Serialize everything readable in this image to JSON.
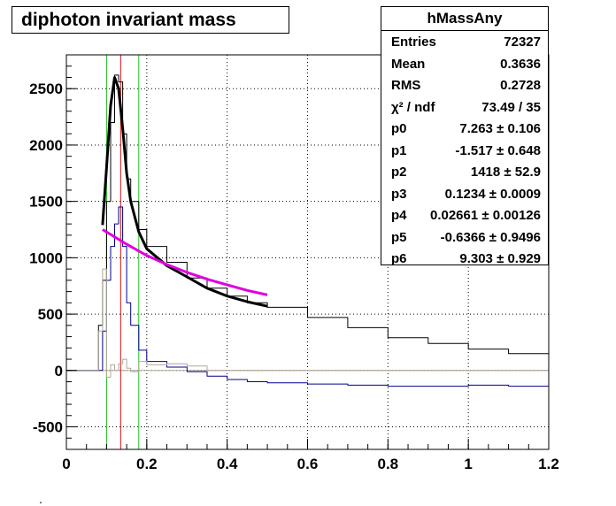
{
  "chart_data": {
    "type": "line",
    "title": "diphoton invariant mass",
    "xlim": [
      0,
      1.2
    ],
    "ylim": [
      -700,
      2800
    ],
    "x_ticks": [
      "0",
      "0.2",
      "0.4",
      "0.6",
      "0.8",
      "1",
      "1.2"
    ],
    "y_ticks": [
      "-500",
      "0",
      "500",
      "1000",
      "1500",
      "2000",
      "2500"
    ],
    "grid": true,
    "series": [
      {
        "role": "histogram-total",
        "color": "#000000",
        "x": [
          0.0,
          0.08,
          0.09,
          0.1,
          0.11,
          0.12,
          0.13,
          0.14,
          0.15,
          0.16,
          0.18,
          0.2,
          0.25,
          0.3,
          0.35,
          0.4,
          0.45,
          0.5,
          0.6,
          0.7,
          0.8,
          0.9,
          1.0,
          1.1,
          1.2
        ],
        "y": [
          0,
          400,
          800,
          1500,
          2200,
          2620,
          2560,
          2100,
          1700,
          1500,
          1250,
          1100,
          960,
          820,
          730,
          660,
          600,
          560,
          470,
          380,
          290,
          240,
          190,
          150,
          100
        ]
      },
      {
        "role": "histogram-background-subtracted",
        "color": "#00008b",
        "x": [
          0.0,
          0.08,
          0.09,
          0.1,
          0.11,
          0.12,
          0.13,
          0.14,
          0.15,
          0.16,
          0.18,
          0.2,
          0.25,
          0.3,
          0.35,
          0.4,
          0.45,
          0.5,
          0.6,
          0.7,
          0.8,
          0.9,
          1.0,
          1.1,
          1.2
        ],
        "y": [
          0,
          0,
          350,
          800,
          1100,
          1300,
          1450,
          1100,
          600,
          400,
          180,
          80,
          30,
          -10,
          -50,
          -80,
          -100,
          -110,
          -120,
          -130,
          -140,
          -140,
          -130,
          -140,
          -150
        ]
      },
      {
        "role": "histogram-sideband",
        "color": "#b0a89a",
        "x": [
          0.0,
          0.07,
          0.08,
          0.09,
          0.1,
          0.11,
          0.12,
          0.13,
          0.14,
          0.15,
          0.16,
          0.18,
          0.2,
          0.25,
          0.3,
          0.35,
          1.2
        ],
        "y": [
          0,
          0,
          350,
          900,
          -60,
          50,
          0,
          60,
          100,
          20,
          -10,
          80,
          50,
          60,
          40,
          0,
          0
        ]
      },
      {
        "role": "fit-total",
        "color": "#000000",
        "x": [
          0.09,
          0.1,
          0.11,
          0.12,
          0.13,
          0.14,
          0.15,
          0.16,
          0.18,
          0.2,
          0.25,
          0.3,
          0.35,
          0.4,
          0.45,
          0.5
        ],
        "y": [
          1290,
          1800,
          2350,
          2600,
          2500,
          2150,
          1750,
          1500,
          1230,
          1080,
          930,
          830,
          730,
          660,
          610,
          570
        ]
      },
      {
        "role": "fit-background",
        "color": "#e000e0",
        "x": [
          0.09,
          0.15,
          0.2,
          0.25,
          0.3,
          0.35,
          0.4,
          0.45,
          0.5
        ],
        "y": [
          1250,
          1120,
          1020,
          940,
          870,
          810,
          760,
          710,
          670
        ]
      }
    ],
    "vertical_lines": [
      {
        "x": 0.1,
        "color": "#22c022"
      },
      {
        "x": 0.135,
        "color": "#d01010"
      },
      {
        "x": 0.18,
        "color": "#22c022"
      }
    ],
    "stats_box": {
      "name": "hMassAny",
      "rows": [
        {
          "key": "Entries",
          "value": "72327"
        },
        {
          "key": "Mean",
          "value": "0.3636"
        },
        {
          "key": "RMS",
          "value": "0.2728"
        },
        {
          "key": "χ² / ndf",
          "value": "73.49 / 35"
        },
        {
          "key": "p0",
          "value": "7.263 ± 0.106"
        },
        {
          "key": "p1",
          "value": "-1.517 ± 0.648"
        },
        {
          "key": "p2",
          "value": "1418 ± 52.9"
        },
        {
          "key": "p3",
          "value": "0.1234 ± 0.0009"
        },
        {
          "key": "p4",
          "value": "0.02661 ± 0.00126"
        },
        {
          "key": "p5",
          "value": "-0.6366 ± 0.9496"
        },
        {
          "key": "p6",
          "value": "9.303 ± 0.929"
        }
      ]
    }
  },
  "footer_mark": "."
}
